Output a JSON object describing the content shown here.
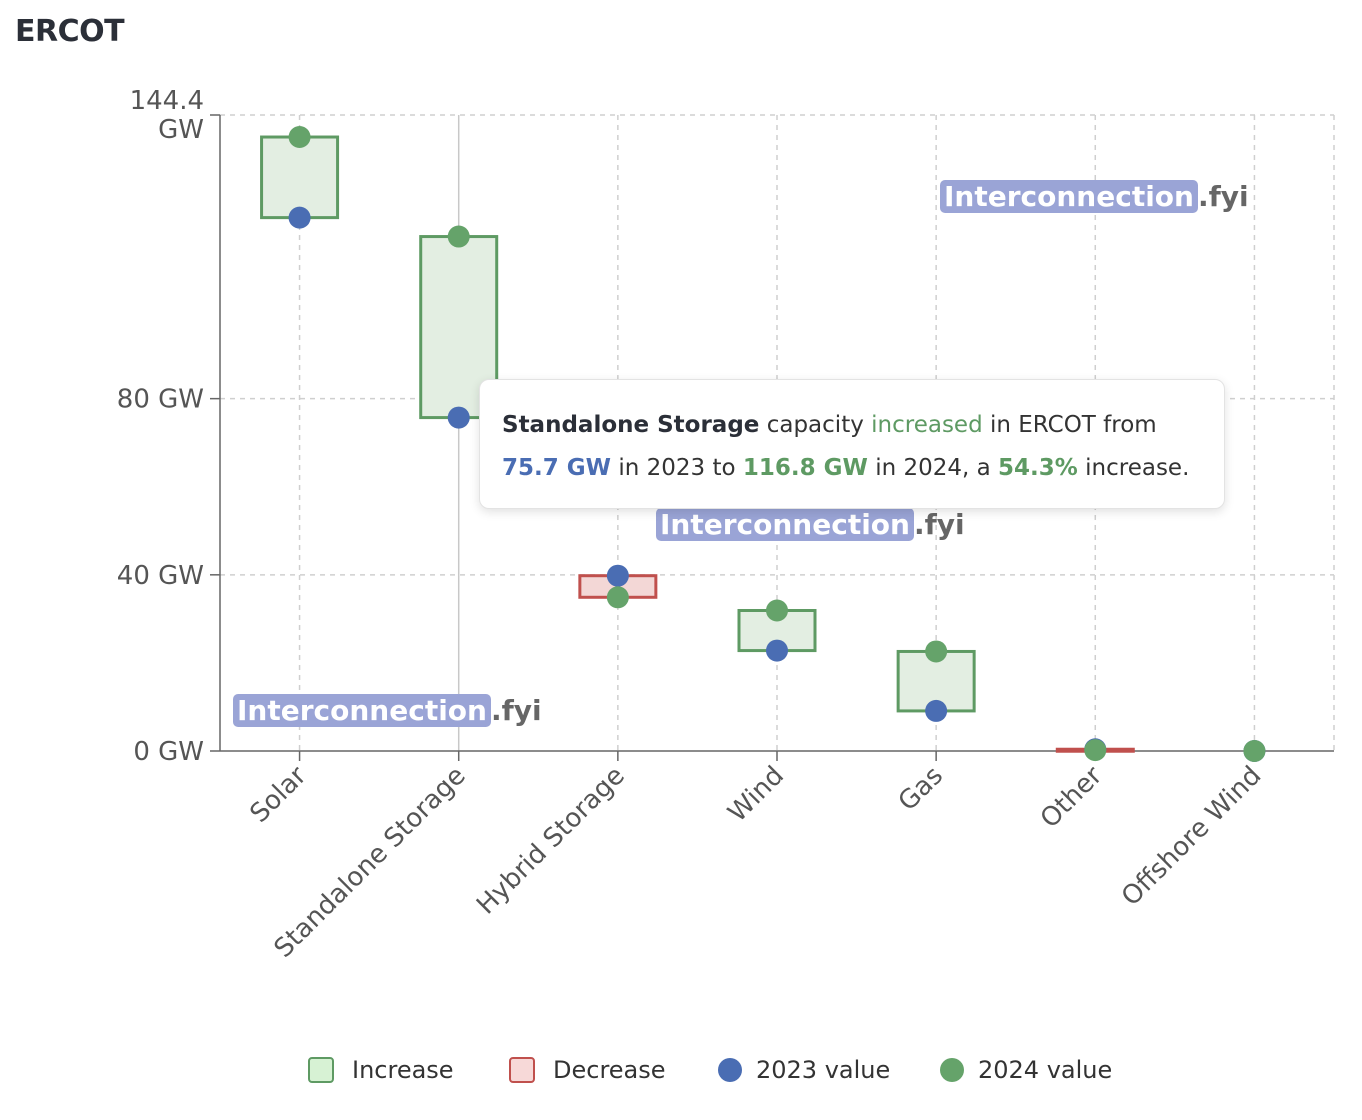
{
  "header": {
    "title": "ERCOT"
  },
  "chart_data": {
    "type": "range-bar",
    "categories": [
      "Solar",
      "Standalone Storage",
      "Hybrid Storage",
      "Wind",
      "Gas",
      "Other",
      "Offshore Wind"
    ],
    "series": [
      {
        "name": "2023 value",
        "values": [
          121.1,
          75.7,
          39.8,
          22.8,
          9.1,
          0.4,
          0.0
        ]
      },
      {
        "name": "2024 value",
        "values": [
          139.4,
          116.8,
          34.9,
          31.9,
          22.6,
          0.2,
          0.0
        ]
      }
    ],
    "ylim": [
      0,
      144.4
    ],
    "yticks": [
      {
        "value": 0,
        "label": "0 GW"
      },
      {
        "value": 40,
        "label": "40 GW"
      },
      {
        "value": 80,
        "label": "80 GW"
      },
      {
        "value": 144.4,
        "label": "144.4 GW"
      }
    ],
    "grid": true,
    "legend_position": "bottom",
    "colors": {
      "increase_fill": "#e3eee2",
      "increase_stroke": "#5e9a63",
      "decrease_fill": "#f3d7d6",
      "decrease_stroke": "#c0504d",
      "value_2023": "#4a6db3",
      "value_2024": "#65a36a"
    }
  },
  "tooltip": {
    "category": "Standalone Storage",
    "text_capacity": "capacity",
    "verb": "increased",
    "text_in": "in ERCOT from",
    "from_value": "75.7 GW",
    "text_in_2023": "in 2023 to",
    "to_value": "116.8 GW",
    "text_in_2024": "in 2024, a",
    "percent": "54.3%",
    "text_end": "increase."
  },
  "watermark": {
    "part1": "Interconnection",
    "part2": ".fyi"
  },
  "legend": {
    "increase": "Increase",
    "decrease": "Decrease",
    "v2023": "2023 value",
    "v2024": "2024 value"
  }
}
